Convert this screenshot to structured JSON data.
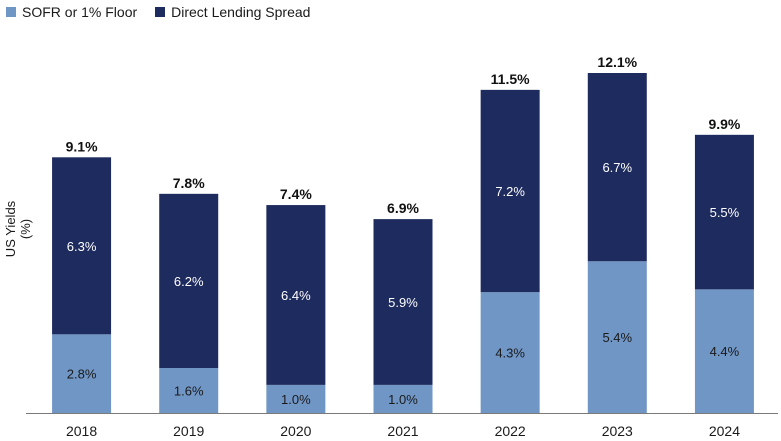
{
  "chart_data": {
    "type": "bar",
    "stacked": true,
    "categories": [
      "2018",
      "2019",
      "2020",
      "2021",
      "2022",
      "2023",
      "2024"
    ],
    "series": [
      {
        "name": "SOFR or 1% Floor",
        "values": [
          2.8,
          1.6,
          1.0,
          1.0,
          4.3,
          5.4,
          4.4
        ],
        "labels": [
          "2.8%",
          "1.6%",
          "1.0%",
          "1.0%",
          "4.3%",
          "5.4%",
          "4.4%"
        ],
        "color": "#7096c6"
      },
      {
        "name": "Direct Lending Spread",
        "values": [
          6.3,
          6.2,
          6.4,
          5.9,
          7.2,
          6.7,
          5.5
        ],
        "labels": [
          "6.3%",
          "6.2%",
          "6.4%",
          "5.9%",
          "7.2%",
          "6.7%",
          "5.5%"
        ],
        "color": "#1e2b5e"
      }
    ],
    "totals": [
      9.1,
      7.8,
      7.4,
      6.9,
      11.5,
      12.1,
      9.9
    ],
    "total_labels": [
      "9.1%",
      "7.8%",
      "7.4%",
      "6.9%",
      "11.5%",
      "12.1%",
      "9.9%"
    ],
    "ylabel": "US Yields (%)",
    "xlabel": "",
    "ylim": [
      0,
      12.1
    ],
    "grid": false,
    "legend_position": "top-left"
  }
}
